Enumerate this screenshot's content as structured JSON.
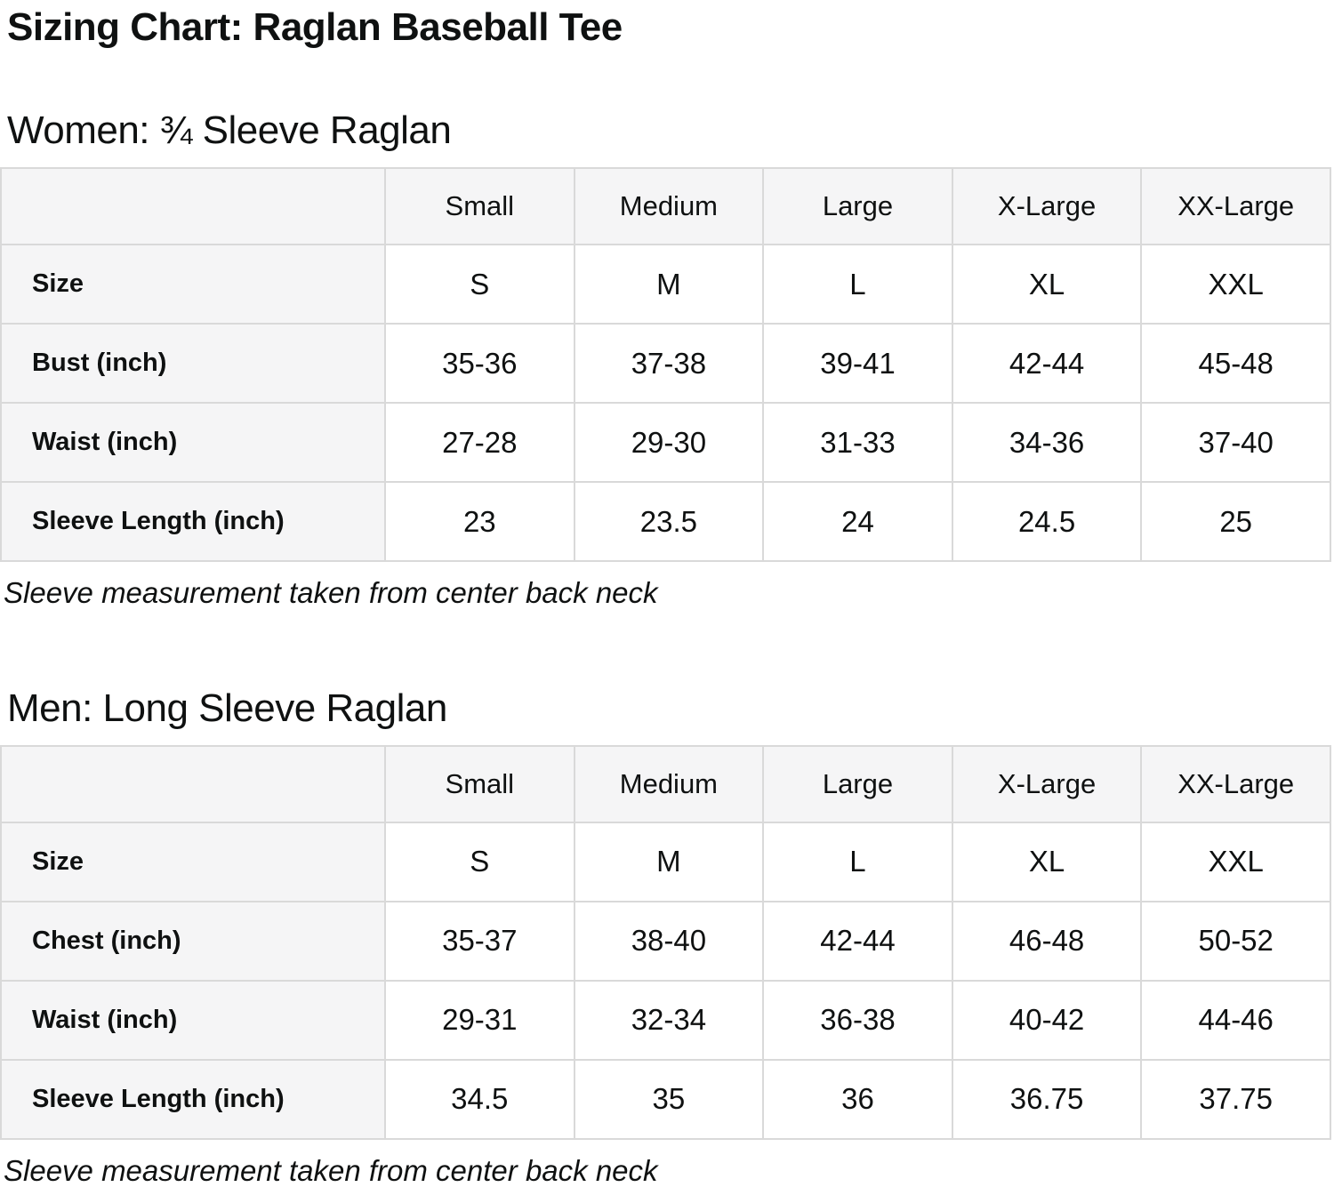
{
  "page": {
    "title": "Sizing Chart: Raglan Baseball Tee"
  },
  "colors": {
    "text": "#0f1111",
    "table_header_bg": "#f5f5f6",
    "table_border": "#d9d9d9",
    "background": "#ffffff"
  },
  "sections": [
    {
      "id": "women",
      "heading": "Women: ¾ Sleeve Raglan",
      "footnote": "Sleeve measurement taken from center back neck",
      "table": {
        "columns": [
          "",
          "Small",
          "Medium",
          "Large",
          "X-Large",
          "XX-Large"
        ],
        "rows": [
          {
            "label": "Size",
            "values": [
              "S",
              "M",
              "L",
              "XL",
              "XXL"
            ]
          },
          {
            "label": "Bust (inch)",
            "values": [
              "35-36",
              "37-38",
              "39-41",
              "42-44",
              "45-48"
            ]
          },
          {
            "label": "Waist (inch)",
            "values": [
              "27-28",
              "29-30",
              "31-33",
              "34-36",
              "37-40"
            ]
          },
          {
            "label": "Sleeve Length (inch)",
            "values": [
              "23",
              "23.5",
              "24",
              "24.5",
              "25"
            ]
          }
        ]
      }
    },
    {
      "id": "men",
      "heading": "Men: Long Sleeve Raglan",
      "footnote": "Sleeve measurement taken from center back neck",
      "table": {
        "columns": [
          "",
          "Small",
          "Medium",
          "Large",
          "X-Large",
          "XX-Large"
        ],
        "rows": [
          {
            "label": "Size",
            "values": [
              "S",
              "M",
              "L",
              "XL",
              "XXL"
            ]
          },
          {
            "label": "Chest (inch)",
            "values": [
              "35-37",
              "38-40",
              "42-44",
              "46-48",
              "50-52"
            ]
          },
          {
            "label": "Waist (inch)",
            "values": [
              "29-31",
              "32-34",
              "36-38",
              "40-42",
              "44-46"
            ]
          },
          {
            "label": "Sleeve Length (inch)",
            "values": [
              "34.5",
              "35",
              "36",
              "36.75",
              "37.75"
            ]
          }
        ]
      }
    }
  ],
  "chart_data": [
    {
      "type": "table",
      "title": "Women: ¾ Sleeve Raglan",
      "categories": [
        "Small",
        "Medium",
        "Large",
        "X-Large",
        "XX-Large"
      ],
      "series": [
        {
          "name": "Size",
          "values": [
            "S",
            "M",
            "L",
            "XL",
            "XXL"
          ]
        },
        {
          "name": "Bust (inch)",
          "values": [
            "35-36",
            "37-38",
            "39-41",
            "42-44",
            "45-48"
          ]
        },
        {
          "name": "Waist (inch)",
          "values": [
            "27-28",
            "29-30",
            "31-33",
            "34-36",
            "37-40"
          ]
        },
        {
          "name": "Sleeve Length (inch)",
          "values": [
            23,
            23.5,
            24,
            24.5,
            25
          ]
        }
      ]
    },
    {
      "type": "table",
      "title": "Men: Long Sleeve Raglan",
      "categories": [
        "Small",
        "Medium",
        "Large",
        "X-Large",
        "XX-Large"
      ],
      "series": [
        {
          "name": "Size",
          "values": [
            "S",
            "M",
            "L",
            "XL",
            "XXL"
          ]
        },
        {
          "name": "Chest (inch)",
          "values": [
            "35-37",
            "38-40",
            "42-44",
            "46-48",
            "50-52"
          ]
        },
        {
          "name": "Waist (inch)",
          "values": [
            "29-31",
            "32-34",
            "36-38",
            "40-42",
            "44-46"
          ]
        },
        {
          "name": "Sleeve Length (inch)",
          "values": [
            34.5,
            35,
            36,
            36.75,
            37.75
          ]
        }
      ]
    }
  ]
}
